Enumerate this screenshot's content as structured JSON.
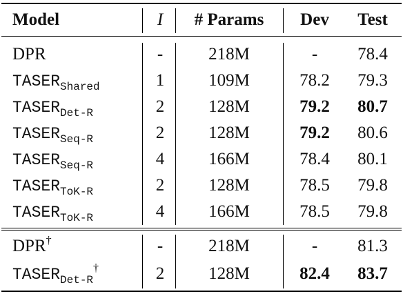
{
  "header": {
    "model": "Model",
    "i": "I",
    "params": "# Params",
    "dev": "Dev",
    "test": "Test"
  },
  "rows": [
    {
      "model": "DPR",
      "sub": "",
      "sup": "",
      "mono": false,
      "i": "-",
      "params": "218M",
      "dev": "-",
      "test": "78.4",
      "dev_bold": false,
      "test_bold": false
    },
    {
      "model": "TASER",
      "sub": "Shared",
      "sup": "",
      "mono": true,
      "i": "1",
      "params": "109M",
      "dev": "78.2",
      "test": "79.3",
      "dev_bold": false,
      "test_bold": false
    },
    {
      "model": "TASER",
      "sub": "Det-R",
      "sup": "",
      "mono": true,
      "i": "2",
      "params": "128M",
      "dev": "79.2",
      "test": "80.7",
      "dev_bold": true,
      "test_bold": true
    },
    {
      "model": "TASER",
      "sub": "Seq-R",
      "sup": "",
      "mono": true,
      "i": "2",
      "params": "128M",
      "dev": "79.2",
      "test": "80.6",
      "dev_bold": true,
      "test_bold": false
    },
    {
      "model": "TASER",
      "sub": "Seq-R",
      "sup": "",
      "mono": true,
      "i": "4",
      "params": "166M",
      "dev": "78.4",
      "test": "80.1",
      "dev_bold": false,
      "test_bold": false
    },
    {
      "model": "TASER",
      "sub": "ToK-R",
      "sup": "",
      "mono": true,
      "i": "2",
      "params": "128M",
      "dev": "78.5",
      "test": "79.8",
      "dev_bold": false,
      "test_bold": false
    },
    {
      "model": "TASER",
      "sub": "ToK-R",
      "sup": "",
      "mono": true,
      "i": "4",
      "params": "166M",
      "dev": "78.5",
      "test": "79.8",
      "dev_bold": false,
      "test_bold": false
    },
    {
      "model": "DPR",
      "sub": "",
      "sup": "†",
      "mono": false,
      "i": "-",
      "params": "218M",
      "dev": "-",
      "test": "81.3",
      "dev_bold": false,
      "test_bold": false
    },
    {
      "model": "TASER",
      "sub": "Det-R",
      "sup": "†",
      "mono": true,
      "i": "2",
      "params": "128M",
      "dev": "82.4",
      "test": "83.7",
      "dev_bold": true,
      "test_bold": true
    }
  ]
}
